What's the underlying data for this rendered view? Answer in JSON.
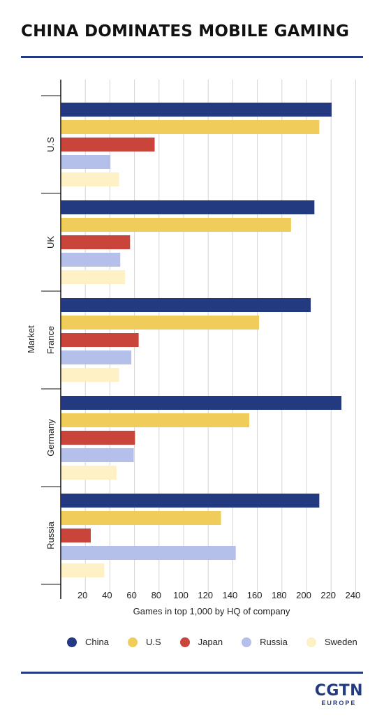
{
  "title": "CHINA DOMINATES MOBILE GAMING",
  "logo": {
    "main": "CGTN",
    "sub": "EUROPE"
  },
  "chart_data": {
    "type": "bar",
    "orientation": "horizontal",
    "title": "CHINA DOMINATES MOBILE GAMING",
    "xlabel": "Games in top 1,000 by HQ of company",
    "ylabel": "Market",
    "categories": [
      "U.S",
      "UK",
      "France",
      "Germany",
      "Russia"
    ],
    "xlim": [
      0,
      240
    ],
    "xticks": [
      20,
      40,
      60,
      80,
      100,
      120,
      140,
      160,
      180,
      200,
      220,
      240
    ],
    "grid": true,
    "legend_position": "bottom",
    "series": [
      {
        "name": "China",
        "color": "#233a80",
        "values": [
          220,
          206,
          203,
          228,
          210
        ]
      },
      {
        "name": "U.S",
        "color": "#f0cd5a",
        "values": [
          210,
          187,
          161,
          153,
          130
        ]
      },
      {
        "name": "Japan",
        "color": "#c9453b",
        "values": [
          76,
          56,
          63,
          60,
          24
        ]
      },
      {
        "name": "Russia",
        "color": "#b4c0ea",
        "values": [
          40,
          48,
          57,
          59,
          142
        ]
      },
      {
        "name": "Sweden",
        "color": "#fdf1c5",
        "values": [
          47,
          52,
          47,
          45,
          35
        ]
      }
    ]
  }
}
